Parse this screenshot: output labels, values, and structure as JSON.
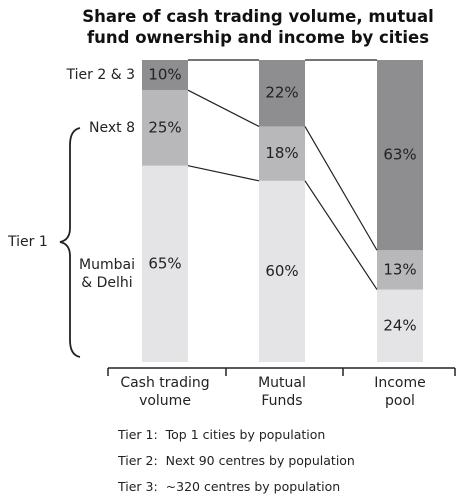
{
  "chart_data": {
    "type": "bar",
    "stacked": true,
    "title": "Share of cash trading volume, mutual fund ownership and income by cities",
    "categories": [
      "Cash trading volume",
      "Mutual Funds",
      "Income pool"
    ],
    "ylim": [
      0,
      100
    ],
    "series": [
      {
        "name": "Mumbai & Delhi",
        "color": "#e4e4e6",
        "values": [
          65,
          60,
          24
        ],
        "value_labels": [
          "65%",
          "60%",
          "24%"
        ]
      },
      {
        "name": "Next 8",
        "color": "#b8b8ba",
        "values": [
          25,
          18,
          13
        ],
        "value_labels": [
          "25%",
          "18%",
          "13%"
        ]
      },
      {
        "name": "Tier 2 & 3",
        "color": "#8e8e90",
        "values": [
          10,
          22,
          63
        ],
        "value_labels": [
          "10%",
          "22%",
          "63%"
        ]
      }
    ],
    "group_label": "Tier 1",
    "notes": [
      "Tier 1:  Top 1 cities by population",
      "Tier 2:  Next 90 centres by population",
      "Tier 3:  ~320 centres by population"
    ]
  }
}
